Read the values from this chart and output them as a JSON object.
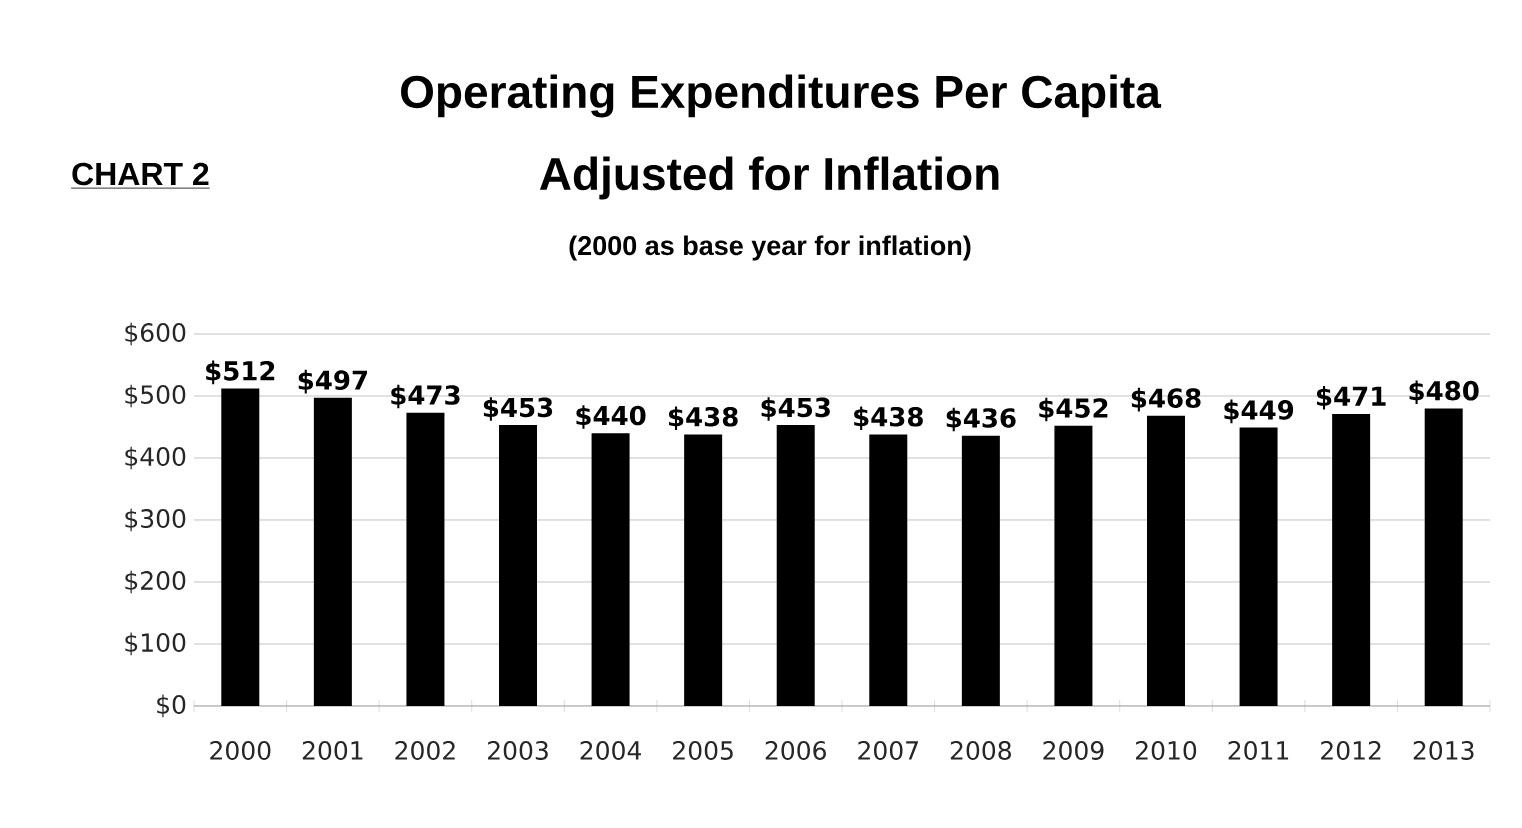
{
  "chart_data": {
    "type": "bar",
    "title": "Operating Expenditures Per Capita",
    "subtitle": "Adjusted for Inflation",
    "annotations": [
      "CHART 2",
      "(2000 as base year for inflation)"
    ],
    "categories": [
      "2000",
      "2001",
      "2002",
      "2003",
      "2004",
      "2005",
      "2006",
      "2007",
      "2008",
      "2009",
      "2010",
      "2011",
      "2012",
      "2013"
    ],
    "values": [
      512,
      497,
      473,
      453,
      440,
      438,
      453,
      438,
      436,
      452,
      468,
      449,
      471,
      480
    ],
    "value_labels": [
      "$512",
      "$497",
      "$473",
      "$453",
      "$440",
      "$438",
      "$453",
      "$438",
      "$436",
      "$452",
      "$468",
      "$449",
      "$471",
      "$480"
    ],
    "color": "#000000",
    "ylim": [
      0,
      600
    ],
    "yticks": [
      {
        "value": 0,
        "label": "$0"
      },
      {
        "value": 100,
        "label": "$100"
      },
      {
        "value": 200,
        "label": "$200"
      },
      {
        "value": 300,
        "label": "$300"
      },
      {
        "value": 400,
        "label": "$400"
      },
      {
        "value": 500,
        "label": "$500"
      },
      {
        "value": 600,
        "label": "$600"
      }
    ],
    "grid": "y"
  }
}
